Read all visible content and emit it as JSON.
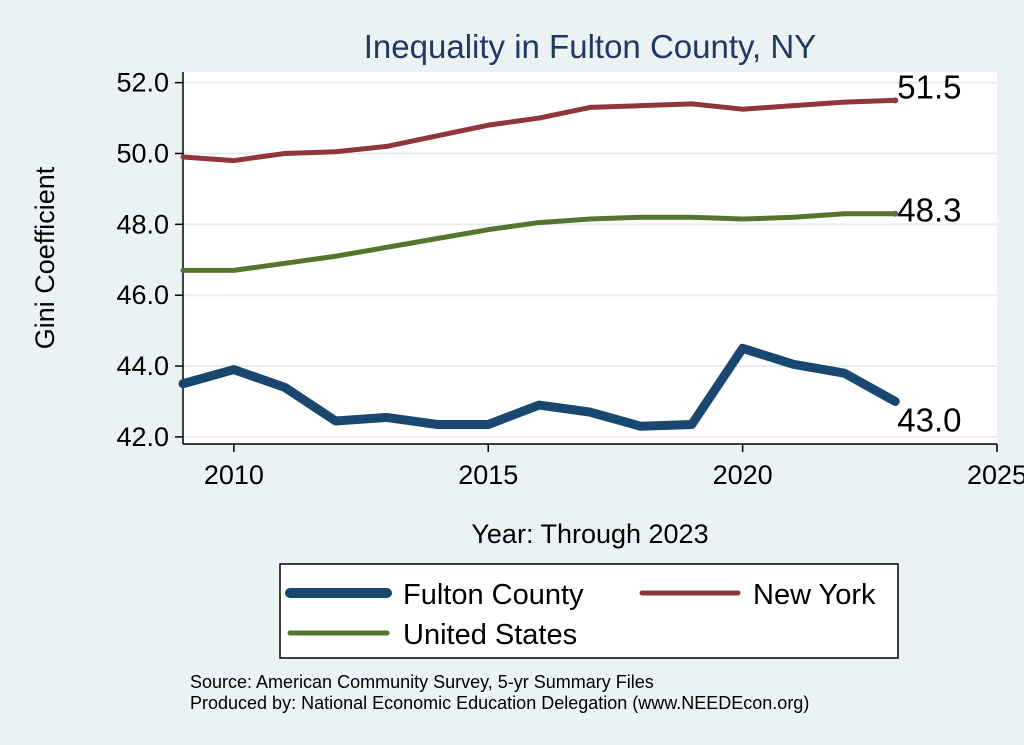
{
  "chart_data": {
    "type": "line",
    "title": "Inequality in Fulton County, NY",
    "xlabel": "Year: Through 2023",
    "ylabel": "Gini Coefficient",
    "xlim": [
      2009,
      2025
    ],
    "ylim": [
      41.8,
      52.3
    ],
    "x_ticks": [
      2010,
      2015,
      2020,
      2025
    ],
    "x_tick_labels": [
      "2010",
      "2015",
      "2020",
      "2025"
    ],
    "y_ticks": [
      42,
      44,
      46,
      48,
      50,
      52
    ],
    "y_tick_labels": [
      "42.0",
      "44.0",
      "46.0",
      "48.0",
      "50.0",
      "52.0"
    ],
    "grid": true,
    "x": [
      2009,
      2010,
      2011,
      2012,
      2013,
      2014,
      2015,
      2016,
      2017,
      2018,
      2019,
      2020,
      2021,
      2022,
      2023
    ],
    "series": [
      {
        "name": "Fulton County",
        "color": "#1a476f",
        "values": [
          43.5,
          43.9,
          43.4,
          42.45,
          42.55,
          42.35,
          42.35,
          42.9,
          42.7,
          42.3,
          42.35,
          44.5,
          44.05,
          43.8,
          43.0
        ],
        "end_label": "43.0"
      },
      {
        "name": "New York",
        "color": "#90353b",
        "values": [
          49.9,
          49.8,
          50.0,
          50.05,
          50.2,
          50.5,
          50.8,
          51.0,
          51.3,
          51.35,
          51.4,
          51.25,
          51.35,
          51.45,
          51.5
        ],
        "end_label": "51.5"
      },
      {
        "name": "United States",
        "color": "#55752f",
        "values": [
          46.7,
          46.7,
          46.9,
          47.1,
          47.35,
          47.6,
          47.85,
          48.05,
          48.15,
          48.2,
          48.2,
          48.15,
          48.2,
          48.3,
          48.3
        ],
        "end_label": "48.3"
      }
    ],
    "legend_position": "bottom",
    "notes": [
      "Source: American Community Survey, 5-yr Summary Files",
      "Produced by: National Economic Education Delegation (www.NEEDEcon.org)"
    ]
  }
}
